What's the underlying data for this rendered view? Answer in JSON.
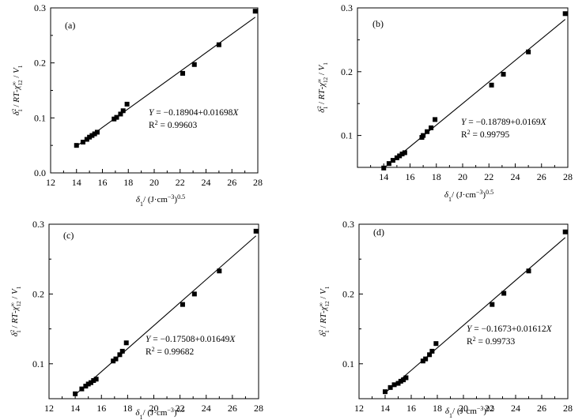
{
  "chart_data": [
    {
      "type": "scatter",
      "panel_label": "(a)",
      "xlabel": "δ1/ (J·cm−3)0.5",
      "ylabel": "δ1² / RT-χ12∞ / V1",
      "xlim": [
        12,
        28
      ],
      "ylim": [
        0.0,
        0.3
      ],
      "x_ticks": [
        "12",
        "14",
        "16",
        "18",
        "20",
        "22",
        "24",
        "26",
        "28"
      ],
      "y_ticks": [
        "0.0",
        "0.1",
        "0.2",
        "0.3"
      ],
      "points": {
        "x": [
          14.0,
          14.5,
          14.8,
          15.0,
          15.2,
          15.4,
          15.6,
          16.9,
          17.1,
          17.4,
          17.6,
          17.9,
          22.2,
          23.1,
          25.0,
          27.8
        ],
        "y": [
          0.05,
          0.056,
          0.061,
          0.065,
          0.068,
          0.071,
          0.074,
          0.098,
          0.101,
          0.107,
          0.113,
          0.125,
          0.181,
          0.197,
          0.233,
          0.294
        ]
      },
      "fit": {
        "intercept": -0.18904,
        "slope": 0.01698,
        "x_range": [
          14.0,
          27.8
        ]
      },
      "equation_prefix": "Y",
      "equation_rest": "= −0.18904+0.01698",
      "equation_var": "X",
      "r2_value": "0.99603"
    },
    {
      "type": "scatter",
      "panel_label": "(b)",
      "xlabel": "δ1/ (J·cm−3)0.5",
      "ylabel": "δ1² / RT-χ12∞ / V1",
      "xlim": [
        12,
        28
      ],
      "ylim": [
        0.05,
        0.3
      ],
      "x_ticks": [
        "14",
        "16",
        "18",
        "20",
        "22",
        "24",
        "26",
        "28"
      ],
      "y_ticks": [
        "0.1",
        "0.2",
        "0.3"
      ],
      "points": {
        "x": [
          14.0,
          14.4,
          14.7,
          15.0,
          15.2,
          15.4,
          15.6,
          16.9,
          17.0,
          17.3,
          17.6,
          17.9,
          22.2,
          23.1,
          25.0,
          27.8
        ],
        "y": [
          0.049,
          0.056,
          0.061,
          0.065,
          0.068,
          0.071,
          0.073,
          0.097,
          0.1,
          0.106,
          0.112,
          0.125,
          0.179,
          0.196,
          0.231,
          0.291
        ]
      },
      "fit": {
        "intercept": -0.18789,
        "slope": 0.0169,
        "x_range": [
          14.0,
          27.8
        ]
      },
      "equation_prefix": "Y",
      "equation_rest": "= −0.18789+0.0169",
      "equation_var": "X",
      "r2_value": "0.99795"
    },
    {
      "type": "scatter",
      "panel_label": "(c)",
      "xlabel": "δ1/ (J·cm−3)0.5",
      "ylabel": "δ1² / RT-χ12∞ / V1",
      "xlim": [
        12,
        28
      ],
      "ylim": [
        0.05,
        0.3
      ],
      "x_ticks": [
        "12",
        "14",
        "16",
        "18",
        "20",
        "22",
        "24",
        "26",
        "28"
      ],
      "y_ticks": [
        "0.1",
        "0.2",
        "0.3"
      ],
      "points": {
        "x": [
          14.0,
          14.5,
          14.8,
          15.0,
          15.2,
          15.4,
          15.6,
          16.9,
          17.1,
          17.4,
          17.6,
          17.9,
          22.2,
          23.1,
          25.0,
          27.8
        ],
        "y": [
          0.057,
          0.064,
          0.068,
          0.071,
          0.073,
          0.076,
          0.078,
          0.104,
          0.107,
          0.113,
          0.118,
          0.13,
          0.185,
          0.2,
          0.233,
          0.29
        ]
      },
      "fit": {
        "intercept": -0.17508,
        "slope": 0.01649,
        "x_range": [
          14.0,
          27.8
        ]
      },
      "equation_prefix": "Y",
      "equation_rest": "= −0.17508+0.01649",
      "equation_var": "X",
      "r2_value": "0.99682"
    },
    {
      "type": "scatter",
      "panel_label": "(d)",
      "xlabel": "δ1/ (J·cm−3)0.5",
      "ylabel": "δ1² / RT-χ12∞ / V1",
      "xlim": [
        12,
        28
      ],
      "ylim": [
        0.05,
        0.3
      ],
      "x_ticks": [
        "12",
        "14",
        "16",
        "18",
        "20",
        "22",
        "24",
        "26",
        "28"
      ],
      "y_ticks": [
        "0.1",
        "0.2",
        "0.3"
      ],
      "points": {
        "x": [
          14.0,
          14.4,
          14.7,
          15.0,
          15.2,
          15.4,
          15.6,
          16.9,
          17.1,
          17.4,
          17.6,
          17.9,
          22.2,
          23.1,
          25.0,
          27.8
        ],
        "y": [
          0.06,
          0.066,
          0.07,
          0.072,
          0.075,
          0.077,
          0.08,
          0.104,
          0.107,
          0.113,
          0.118,
          0.129,
          0.185,
          0.201,
          0.233,
          0.289
        ]
      },
      "fit": {
        "intercept": -0.1673,
        "slope": 0.01612,
        "x_range": [
          14.0,
          27.8
        ]
      },
      "equation_prefix": "Y",
      "equation_rest": "= −0.1673+0.01612",
      "equation_var": "X",
      "r2_value": "0.99733"
    }
  ]
}
